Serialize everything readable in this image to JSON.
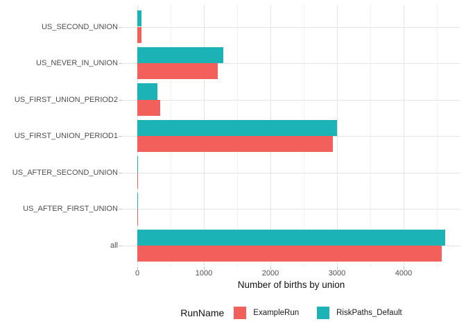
{
  "chart_data": {
    "type": "bar",
    "orientation": "horizontal",
    "title": "",
    "xlabel": "Number of births by union",
    "ylabel": "",
    "categories": [
      "US_SECOND_UNION",
      "US_NEVER_IN_UNION",
      "US_FIRST_UNION_PERIOD2",
      "US_FIRST_UNION_PERIOD1",
      "US_AFTER_SECOND_UNION",
      "US_AFTER_FIRST_UNION",
      "all"
    ],
    "series": [
      {
        "name": "ExampleRun",
        "color": "#F3605B",
        "values": [
          65,
          1210,
          340,
          2940,
          13,
          13,
          4570
        ]
      },
      {
        "name": "RiskPaths_Default",
        "color": "#1BB3B5",
        "values": [
          60,
          1290,
          305,
          3000,
          15,
          15,
          4620
        ]
      }
    ],
    "x_ticks": [
      0,
      1000,
      2000,
      3000,
      4000
    ],
    "x_minor_ticks": [
      500,
      1500,
      2500,
      3500,
      4500
    ],
    "xlim": [
      0,
      4850
    ],
    "grid": true,
    "legend_title": "RunName",
    "legend_position": "bottom",
    "legend_order": [
      "ExampleRun",
      "RiskPaths_Default"
    ],
    "bar_group_order_top_to_bottom": [
      "RiskPaths_Default",
      "ExampleRun"
    ],
    "colors": {
      "major_grid": "#e2e2e2",
      "minor_grid": "#f0f0f0",
      "axis_text": "#4d4d4d",
      "title_text": "#111111"
    }
  }
}
